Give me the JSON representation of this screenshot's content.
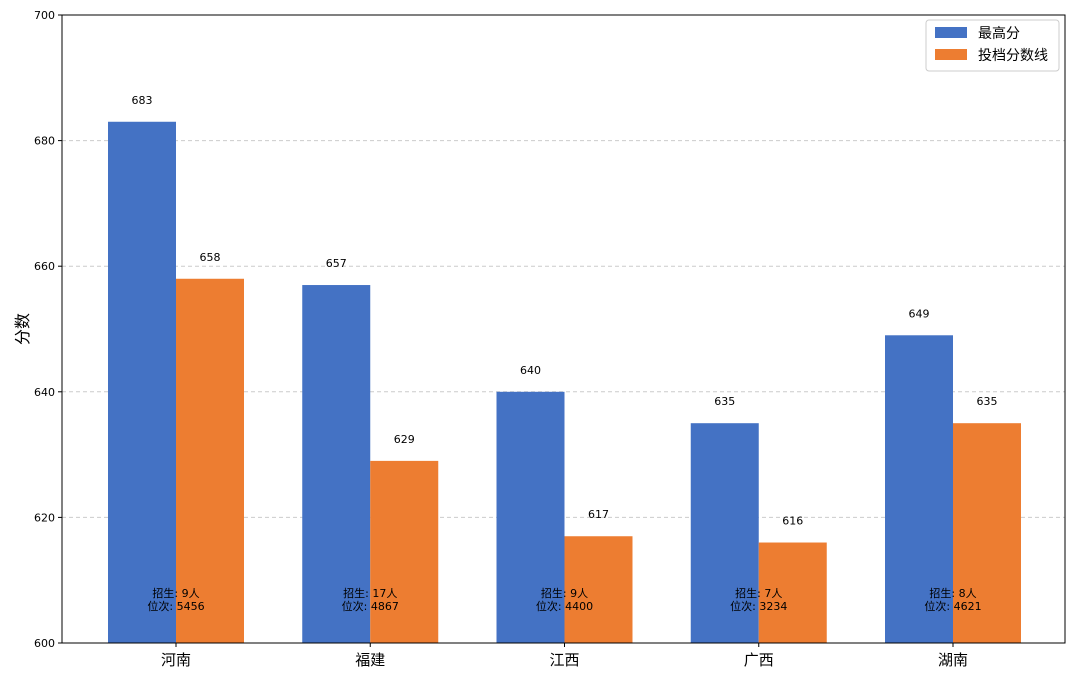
{
  "chart_data": {
    "type": "bar",
    "title": "",
    "xlabel": "",
    "ylabel": "分数",
    "ylim": [
      600,
      700
    ],
    "yticks": [
      600,
      620,
      640,
      660,
      680,
      700
    ],
    "grid": "y-dashed",
    "legend_position": "top-right",
    "categories": [
      "河南",
      "福建",
      "江西",
      "广西",
      "湖南"
    ],
    "series": [
      {
        "name": "最高分",
        "color": "#4472C4",
        "values": [
          683,
          657,
          640,
          635,
          649
        ]
      },
      {
        "name": "投档分数线",
        "color": "#ED7D31",
        "values": [
          658,
          629,
          617,
          616,
          635
        ]
      }
    ],
    "annotations": [
      {
        "line1": "招生: 9人",
        "line2": "位次: 5456"
      },
      {
        "line1": "招生: 17人",
        "line2": "位次: 4867"
      },
      {
        "line1": "招生: 9人",
        "line2": "位次: 4400"
      },
      {
        "line1": "招生: 7人",
        "line2": "位次: 3234"
      },
      {
        "line1": "招生: 8人",
        "line2": "位次: 4621"
      }
    ]
  }
}
